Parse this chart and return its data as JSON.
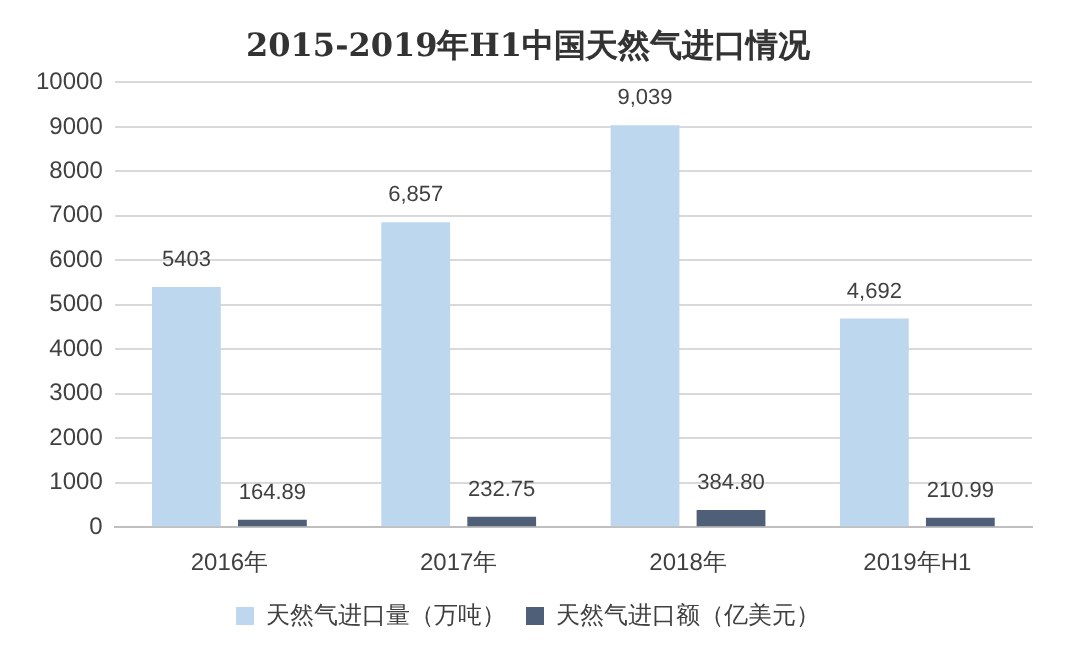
{
  "chart_data": {
    "type": "bar",
    "title": "2015-2019年H1中国天然气进口情况",
    "categories": [
      "2016年",
      "2017年",
      "2018年",
      "2019年H1"
    ],
    "series": [
      {
        "name": "天然气进口量（万吨）",
        "color": "#bdd7ee",
        "values": [
          5403,
          6857,
          9039,
          4692
        ],
        "value_labels": [
          "5403",
          "6,857",
          "9,039",
          "4,692"
        ]
      },
      {
        "name": "天然气进口额（亿美元）",
        "color": "#4f5f78",
        "values": [
          164.89,
          232.75,
          384.8,
          210.99
        ],
        "value_labels": [
          "164.89",
          "232.75",
          "384.80",
          "210.99"
        ]
      }
    ],
    "ylim": [
      0,
      10000
    ],
    "yticks": [
      0,
      1000,
      2000,
      3000,
      4000,
      5000,
      6000,
      7000,
      8000,
      9000,
      10000
    ],
    "grid": "y",
    "legend": "bottom"
  }
}
